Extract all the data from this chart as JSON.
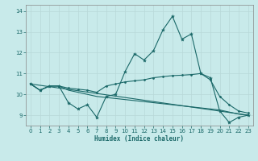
{
  "title": "",
  "xlabel": "Humidex (Indice chaleur)",
  "ylabel": "",
  "background_color": "#c8eaea",
  "grid_color": "#b8d8d8",
  "line_color": "#1a6868",
  "xlim": [
    -0.5,
    23.5
  ],
  "ylim": [
    8.5,
    14.3
  ],
  "yticks": [
    9,
    10,
    11,
    12,
    13,
    14
  ],
  "xticks": [
    0,
    1,
    2,
    3,
    4,
    5,
    6,
    7,
    8,
    9,
    10,
    11,
    12,
    13,
    14,
    15,
    16,
    17,
    18,
    19,
    20,
    21,
    22,
    23
  ],
  "series1_x": [
    0,
    1,
    2,
    3,
    4,
    5,
    6,
    7,
    8,
    9,
    10,
    11,
    12,
    13,
    14,
    15,
    16,
    17,
    18,
    19,
    20,
    21,
    22,
    23
  ],
  "series1_y": [
    10.5,
    10.2,
    10.4,
    10.4,
    9.6,
    9.3,
    9.5,
    8.9,
    9.9,
    10.0,
    11.1,
    11.95,
    11.65,
    12.1,
    13.1,
    13.75,
    12.65,
    12.9,
    11.0,
    10.8,
    9.2,
    8.65,
    8.9,
    9.0
  ],
  "series2_x": [
    0,
    1,
    2,
    3,
    4,
    5,
    6,
    7,
    8,
    9,
    10,
    11,
    12,
    13,
    14,
    15,
    16,
    17,
    18,
    19,
    20,
    21,
    22,
    23
  ],
  "series2_y": [
    10.5,
    10.2,
    10.4,
    10.4,
    10.3,
    10.25,
    10.2,
    10.1,
    10.4,
    10.5,
    10.6,
    10.65,
    10.7,
    10.8,
    10.85,
    10.9,
    10.92,
    10.95,
    11.0,
    10.7,
    9.9,
    9.5,
    9.2,
    9.1
  ],
  "series3_x": [
    0,
    1,
    2,
    3,
    4,
    5,
    6,
    7,
    8,
    9,
    10,
    11,
    12,
    13,
    14,
    15,
    16,
    17,
    18,
    19,
    20,
    21,
    22,
    23
  ],
  "series3_y": [
    10.5,
    10.2,
    10.4,
    10.4,
    10.2,
    10.1,
    10.0,
    9.9,
    9.85,
    9.8,
    9.75,
    9.7,
    9.65,
    9.6,
    9.55,
    9.5,
    9.45,
    9.4,
    9.35,
    9.3,
    9.25,
    9.15,
    9.05,
    9.0
  ],
  "series4_x": [
    0,
    23
  ],
  "series4_y": [
    10.5,
    9.0
  ],
  "xlabel_fontsize": 5.5,
  "tick_fontsize": 5.0
}
